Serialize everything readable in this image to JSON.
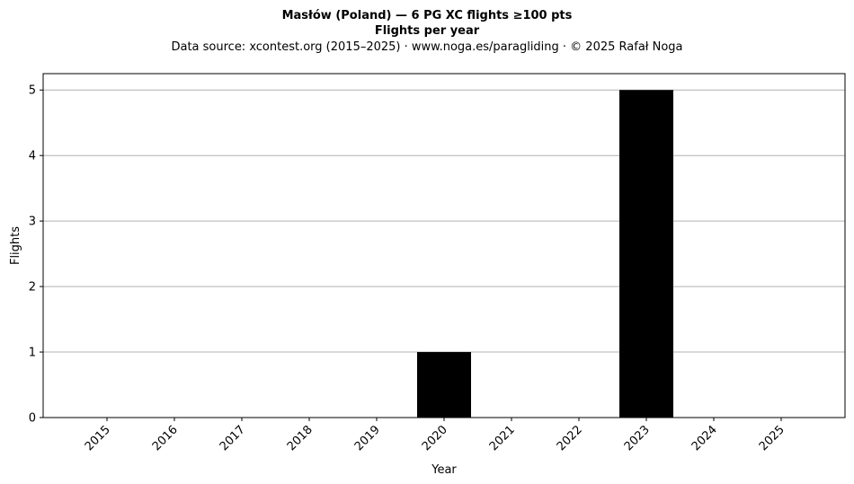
{
  "chart_data": {
    "type": "bar",
    "title": "Masłów (Poland)  —  6 PG XC flights ≥100 pts",
    "subtitle": "Flights per year",
    "source_line": "Data source: xcontest.org (2015–2025)  ·  www.noga.es/paragliding  ·  © 2025 Rafał Noga",
    "xlabel": "Year",
    "ylabel": "Flights",
    "categories": [
      "2015",
      "2016",
      "2017",
      "2018",
      "2019",
      "2020",
      "2021",
      "2022",
      "2023",
      "2024",
      "2025"
    ],
    "values": [
      0,
      0,
      0,
      0,
      0,
      1,
      0,
      0,
      5,
      0,
      0
    ],
    "ylim": [
      0,
      5.25
    ],
    "yticks": [
      "0",
      "1",
      "2",
      "3",
      "4",
      "5"
    ],
    "grid": "y-major",
    "legend": "none",
    "bar_color": "#000000",
    "grid_color": "#b0b0b0"
  }
}
